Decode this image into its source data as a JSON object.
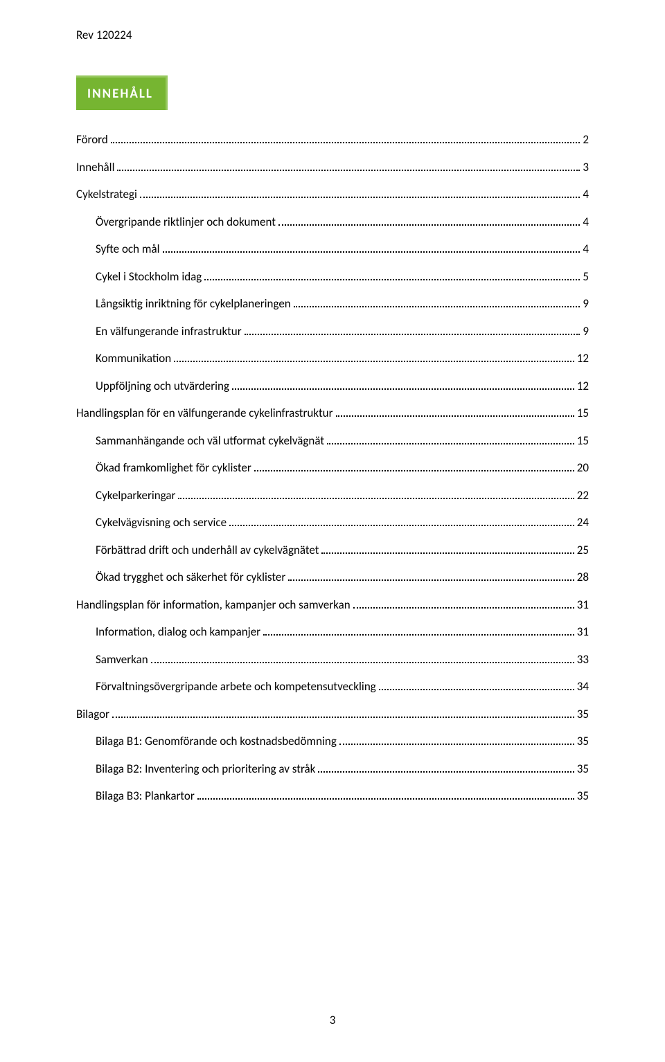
{
  "header": {
    "rev": "Rev 120224"
  },
  "title": "INNEHÅLL",
  "toc": {
    "items": [
      {
        "label": "Förord",
        "page": "2",
        "level": 0
      },
      {
        "label": "Innehåll",
        "page": "3",
        "level": 0
      },
      {
        "label": "Cykelstrategi",
        "page": "4",
        "level": 0
      },
      {
        "label": "Övergripande riktlinjer och dokument",
        "page": "4",
        "level": 1
      },
      {
        "label": "Syfte och mål",
        "page": "4",
        "level": 1
      },
      {
        "label": "Cykel i Stockholm idag",
        "page": "5",
        "level": 1
      },
      {
        "label": "Långsiktig inriktning för cykelplaneringen",
        "page": "9",
        "level": 1
      },
      {
        "label": "En välfungerande infrastruktur",
        "page": "9",
        "level": 1
      },
      {
        "label": "Kommunikation",
        "page": "12",
        "level": 1
      },
      {
        "label": "Uppföljning och utvärdering",
        "page": "12",
        "level": 1
      },
      {
        "label": "Handlingsplan för en välfungerande cykelinfrastruktur",
        "page": "15",
        "level": 0
      },
      {
        "label": "Sammanhängande och väl utformat cykelvägnät",
        "page": "15",
        "level": 1
      },
      {
        "label": "Ökad framkomlighet för cyklister",
        "page": "20",
        "level": 1
      },
      {
        "label": "Cykelparkeringar",
        "page": "22",
        "level": 1
      },
      {
        "label": "Cykelvägvisning och service",
        "page": "24",
        "level": 1
      },
      {
        "label": "Förbättrad drift och underhåll av cykelvägnätet",
        "page": "25",
        "level": 1
      },
      {
        "label": "Ökad trygghet och säkerhet för cyklister",
        "page": "28",
        "level": 1
      },
      {
        "label": "Handlingsplan för information, kampanjer och samverkan",
        "page": "31",
        "level": 0
      },
      {
        "label": "Information, dialog och kampanjer",
        "page": "31",
        "level": 1
      },
      {
        "label": "Samverkan",
        "page": "33",
        "level": 1
      },
      {
        "label": "Förvaltningsövergripande arbete och kompetensutveckling",
        "page": "34",
        "level": 1
      },
      {
        "label": "Bilagor",
        "page": "35",
        "level": 0
      },
      {
        "label": "Bilaga B1: Genomförande och kostnadsbedömning",
        "page": "35",
        "level": 1
      },
      {
        "label": "Bilaga B2: Inventering och prioritering av stråk",
        "page": "35",
        "level": 1
      },
      {
        "label": "Bilaga B3: Plankartor",
        "page": "35",
        "level": 1
      }
    ]
  },
  "footer": {
    "page_number": "3"
  },
  "styling": {
    "background_color": "#ffffff",
    "text_color": "#000000",
    "title_bg": "#76b531",
    "title_border": "#97c85f",
    "title_color": "#ffffff",
    "font_family": "Calibri",
    "body_fontsize_pt": 12,
    "title_fontsize_pt": 14,
    "leader_style": "dotted"
  }
}
